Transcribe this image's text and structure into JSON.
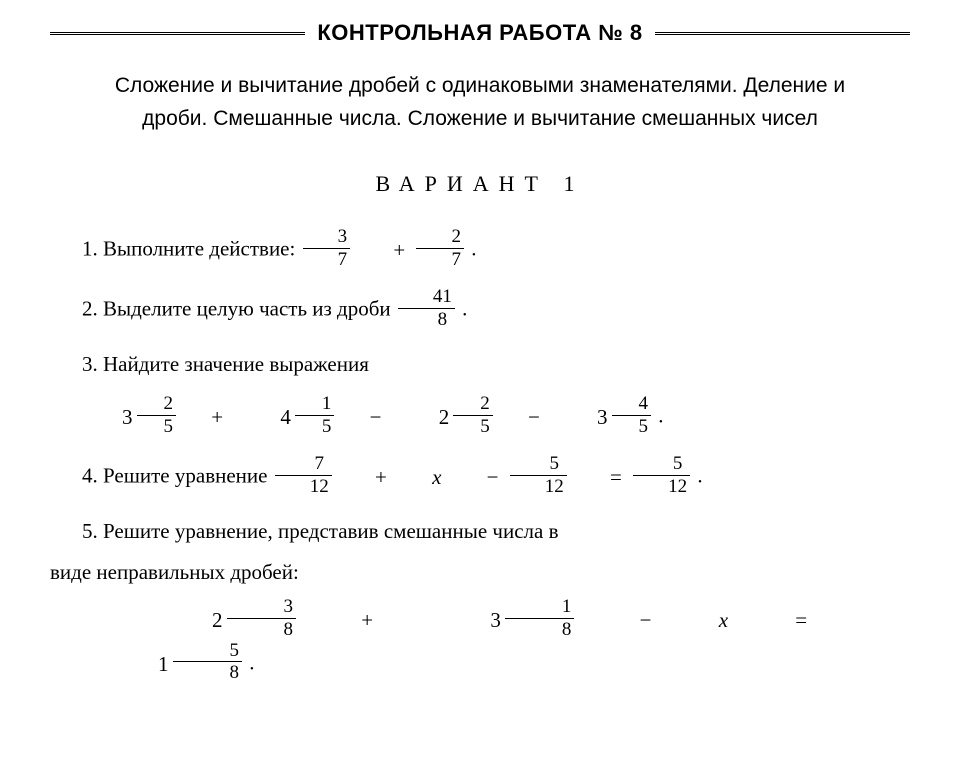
{
  "header": {
    "title": "КОНТРОЛЬНАЯ РАБОТА № 8",
    "subtitle": "Сложение и вычитание дробей с одинаковыми знаменателями. Деление и дроби. Смешанные числа. Сложение и вычитание смешанных чисел",
    "variant": "ВАРИАНТ 1"
  },
  "p1": {
    "text": "1. Выполните действие: ",
    "f1": {
      "num": "3",
      "den": "7"
    },
    "op": "+",
    "f2": {
      "num": "2",
      "den": "7"
    },
    "tail": "."
  },
  "p2": {
    "text": "2. Выделите целую часть из дроби ",
    "f": {
      "num": "41",
      "den": "8"
    },
    "tail": "."
  },
  "p3": {
    "text": "3. Найдите значение выражения",
    "m1": {
      "w": "3",
      "num": "2",
      "den": "5"
    },
    "op1": "+",
    "m2": {
      "w": "4",
      "num": "1",
      "den": "5"
    },
    "op2": "−",
    "m3": {
      "w": "2",
      "num": "2",
      "den": "5"
    },
    "op3": "−",
    "m4": {
      "w": "3",
      "num": "4",
      "den": "5"
    },
    "tail": "."
  },
  "p4": {
    "text": "4. Решите уравнение ",
    "f1": {
      "num": "7",
      "den": "12"
    },
    "op1": "+",
    "x": "x",
    "op2": "−",
    "f2": {
      "num": "5",
      "den": "12"
    },
    "eq": "=",
    "f3": {
      "num": "5",
      "den": "12"
    },
    "tail": "."
  },
  "p5": {
    "line1": "5. Решите уравнение, представив смешанные числа в",
    "line2": "виде неправильных дробей:",
    "m1": {
      "w": "2",
      "num": "3",
      "den": "8"
    },
    "op1": "+",
    "m2": {
      "w": "3",
      "num": "1",
      "den": "8"
    },
    "op2": "−",
    "x": "x",
    "eq": "=",
    "m3": {
      "w": "1",
      "num": "5",
      "den": "8"
    },
    "tail": "."
  }
}
